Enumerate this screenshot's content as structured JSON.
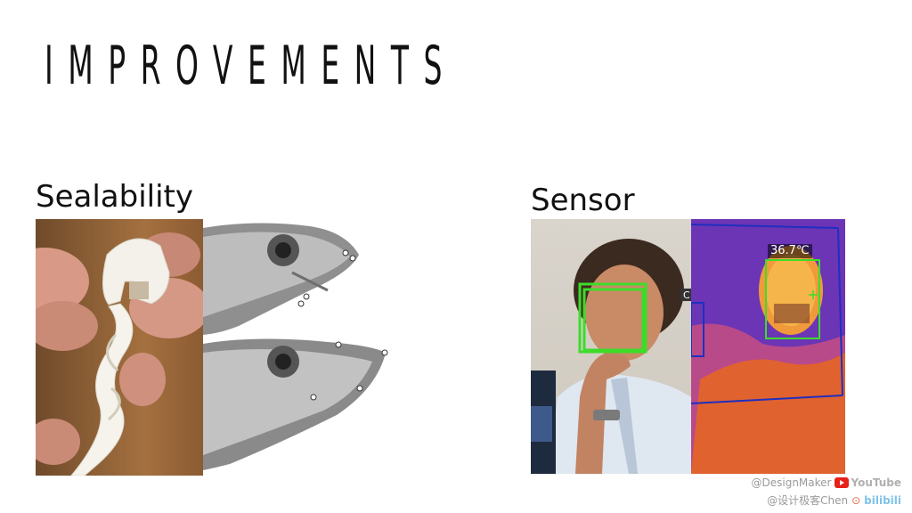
{
  "slide": {
    "title": "IMPROVEMENTS",
    "sections": [
      {
        "label": "Sealability"
      },
      {
        "label": "Sensor"
      }
    ],
    "thermal_readout": "36.7℃",
    "watermark": {
      "line1_handle": "@DesignMaker",
      "line1_platform": "YouTube",
      "line2_handle": "@设计极客Chen",
      "line2_platform": "bilibili"
    }
  },
  "colors": {
    "title": "#111111",
    "background": "#ffffff",
    "detection_box": "#3ddc2a",
    "thermal_frame": "#1f2fbf"
  }
}
